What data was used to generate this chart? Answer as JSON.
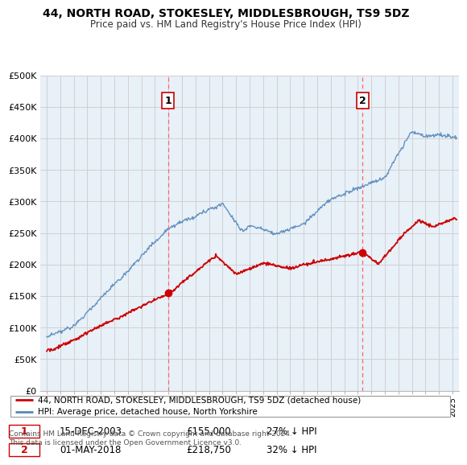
{
  "title": "44, NORTH ROAD, STOKESLEY, MIDDLESBROUGH, TS9 5DZ",
  "subtitle": "Price paid vs. HM Land Registry's House Price Index (HPI)",
  "ylabel_ticks": [
    "£0",
    "£50K",
    "£100K",
    "£150K",
    "£200K",
    "£250K",
    "£300K",
    "£350K",
    "£400K",
    "£450K",
    "£500K"
  ],
  "ytick_values": [
    0,
    50000,
    100000,
    150000,
    200000,
    250000,
    300000,
    350000,
    400000,
    450000,
    500000
  ],
  "ylim": [
    0,
    500000
  ],
  "xlim_start": 1994.5,
  "xlim_end": 2025.5,
  "sale1_x": 2003.96,
  "sale1_y": 155000,
  "sale2_x": 2018.33,
  "sale2_y": 218750,
  "marker1_label": "1",
  "marker2_label": "2",
  "legend_line1": "44, NORTH ROAD, STOKESLEY, MIDDLESBROUGH, TS9 5DZ (detached house)",
  "legend_line2": "HPI: Average price, detached house, North Yorkshire",
  "table_row1_num": "1",
  "table_row1_date": "15-DEC-2003",
  "table_row1_price": "£155,000",
  "table_row1_hpi": "27% ↓ HPI",
  "table_row2_num": "2",
  "table_row2_date": "01-MAY-2018",
  "table_row2_price": "£218,750",
  "table_row2_hpi": "32% ↓ HPI",
  "footer": "Contains HM Land Registry data © Crown copyright and database right 2024.\nThis data is licensed under the Open Government Licence v3.0.",
  "red_color": "#cc0000",
  "blue_color": "#5588bb",
  "bg_fill_color": "#e8f0f8",
  "dashed_red": "#ff6666",
  "bg_color": "#ffffff",
  "grid_color": "#cccccc",
  "marker_box_color": "#cc0000"
}
